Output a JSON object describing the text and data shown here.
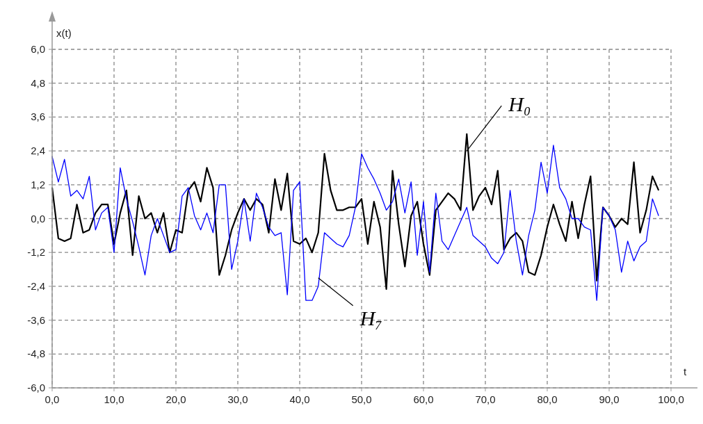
{
  "chart_data": {
    "type": "line",
    "xlabel": "t",
    "ylabel": "x(t)",
    "xlim": [
      0,
      100
    ],
    "ylim": [
      -6,
      6
    ],
    "xticks": [
      {
        "value": 0,
        "label": "0,0"
      },
      {
        "value": 10,
        "label": "10,0"
      },
      {
        "value": 20,
        "label": "20,0"
      },
      {
        "value": 30,
        "label": "30,0"
      },
      {
        "value": 40,
        "label": "40,0"
      },
      {
        "value": 50,
        "label": "50,0"
      },
      {
        "value": 60,
        "label": "60,0"
      },
      {
        "value": 70,
        "label": "70,0"
      },
      {
        "value": 80,
        "label": "80,0"
      },
      {
        "value": 90,
        "label": "90,0"
      },
      {
        "value": 100,
        "label": "100,0"
      }
    ],
    "yticks": [
      {
        "value": -6,
        "label": "-6,0"
      },
      {
        "value": -4.8,
        "label": "-4,8"
      },
      {
        "value": -3.6,
        "label": "-3,6"
      },
      {
        "value": -2.4,
        "label": "-2,4"
      },
      {
        "value": -1.2,
        "label": "-1,2"
      },
      {
        "value": 0,
        "label": "0,0"
      },
      {
        "value": 1.2,
        "label": "1,2"
      },
      {
        "value": 2.4,
        "label": "2,4"
      },
      {
        "value": 3.6,
        "label": "3,6"
      },
      {
        "value": 4.8,
        "label": "4,8"
      },
      {
        "value": 6,
        "label": "6,0"
      }
    ],
    "grid": true,
    "marker": "none",
    "line_style": "solid",
    "x": [
      0,
      1,
      2,
      3,
      4,
      5,
      6,
      7,
      8,
      9,
      10,
      11,
      12,
      13,
      14,
      15,
      16,
      17,
      18,
      19,
      20,
      21,
      22,
      23,
      24,
      25,
      26,
      27,
      28,
      29,
      30,
      31,
      32,
      33,
      34,
      35,
      36,
      37,
      38,
      39,
      40,
      41,
      42,
      43,
      44,
      45,
      46,
      47,
      48,
      49,
      50,
      51,
      52,
      53,
      54,
      55,
      56,
      57,
      58,
      59,
      60,
      61,
      62,
      63,
      64,
      65,
      66,
      67,
      68,
      69,
      70,
      71,
      72,
      73,
      74,
      75,
      76,
      77,
      78,
      79,
      80,
      81,
      82,
      83,
      84,
      85,
      86,
      87,
      88,
      89,
      90,
      91,
      92,
      93,
      94,
      95,
      96,
      97,
      98
    ],
    "series": [
      {
        "color": "#000000",
        "values": [
          1.1,
          -0.7,
          -0.8,
          -0.7,
          0.5,
          -0.5,
          -0.4,
          0.2,
          0.5,
          0.5,
          -0.9,
          0.2,
          1.0,
          -1.3,
          0.8,
          0.0,
          0.2,
          -0.5,
          0.2,
          -1.2,
          -0.4,
          -0.5,
          1.0,
          1.3,
          0.6,
          1.8,
          1.1,
          -2.0,
          -1.3,
          -0.4,
          0.2,
          0.7,
          0.3,
          0.7,
          0.5,
          -0.5,
          1.4,
          0.3,
          1.6,
          -0.8,
          -0.9,
          -0.7,
          -1.2,
          -0.5,
          2.3,
          1.0,
          0.3,
          0.3,
          0.4,
          0.4,
          0.7,
          -0.9,
          0.6,
          -0.3,
          -2.5,
          1.7,
          -0.2,
          -1.7,
          0.1,
          0.6,
          -0.9,
          -2.0,
          0.3,
          0.6,
          0.9,
          0.7,
          0.3,
          3.0,
          0.3,
          0.8,
          1.1,
          0.5,
          1.7,
          -1.1,
          -0.7,
          -0.5,
          -0.8,
          -1.9,
          -2.0,
          -1.3,
          -0.3,
          0.5,
          -0.2,
          -0.8,
          0.6,
          -0.7,
          0.5,
          1.5,
          -2.2,
          0.4,
          0.1,
          -0.3,
          0.0,
          -0.2,
          2.0,
          -0.5,
          0.3,
          1.5,
          1.0
        ]
      },
      {
        "color": "#0000ff",
        "values": [
          2.2,
          1.3,
          2.1,
          0.8,
          1.0,
          0.7,
          1.5,
          -0.4,
          0.2,
          0.4,
          -1.2,
          1.8,
          0.7,
          -0.1,
          -1.0,
          -2.0,
          -0.6,
          0.0,
          -0.6,
          -1.2,
          -1.1,
          0.8,
          1.1,
          0.1,
          -0.4,
          0.2,
          -0.5,
          1.2,
          1.2,
          -1.8,
          -0.8,
          0.7,
          -0.8,
          0.9,
          0.4,
          -0.3,
          -0.6,
          -0.5,
          -2.7,
          1.0,
          1.3,
          -2.9,
          -2.9,
          -2.4,
          -0.5,
          -0.7,
          -0.9,
          -1.0,
          -0.6,
          0.4,
          2.3,
          1.8,
          1.4,
          0.9,
          0.3,
          0.6,
          1.4,
          0.2,
          1.3,
          -1.3,
          0.6,
          -1.9,
          0.9,
          -0.8,
          -1.1,
          -0.6,
          -0.1,
          0.4,
          -0.6,
          -0.8,
          -1.0,
          -1.4,
          -1.6,
          -1.2,
          1.0,
          -0.8,
          -2.0,
          -0.6,
          0.3,
          2.0,
          0.9,
          2.6,
          1.1,
          0.7,
          0.0,
          0.0,
          -0.3,
          -0.4,
          -2.9,
          0.4,
          0.1,
          -0.4,
          -1.9,
          -0.8,
          -1.5,
          -1.0,
          -0.8,
          0.7,
          0.1
        ]
      }
    ],
    "annotations": [
      {
        "text": "H₀",
        "x": 67,
        "y": 2.4
      },
      {
        "text": "H₇",
        "x": 43,
        "y": -2.1
      }
    ]
  }
}
